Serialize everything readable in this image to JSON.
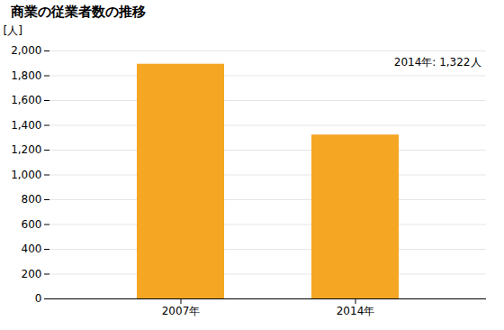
{
  "chart_data": {
    "type": "bar",
    "title": "商業の従業者数の推移",
    "ylabel": "[人]",
    "categories": [
      "2007年",
      "2014年"
    ],
    "values": [
      1893,
      1322
    ],
    "color": "#F5A623",
    "annotation": "2014年: 1,322人",
    "ylim": [
      0,
      2000
    ],
    "yticks": [
      0,
      200,
      400,
      600,
      800,
      {
        "value": 1000,
        "label": "1,000"
      },
      {
        "value": 1200,
        "label": "1,200"
      },
      {
        "value": 1400,
        "label": "1,400"
      },
      {
        "value": 1600,
        "label": "1,600"
      },
      {
        "value": 1800,
        "label": "1,800"
      },
      {
        "value": 2000,
        "label": "2,000"
      }
    ],
    "grid": true
  }
}
